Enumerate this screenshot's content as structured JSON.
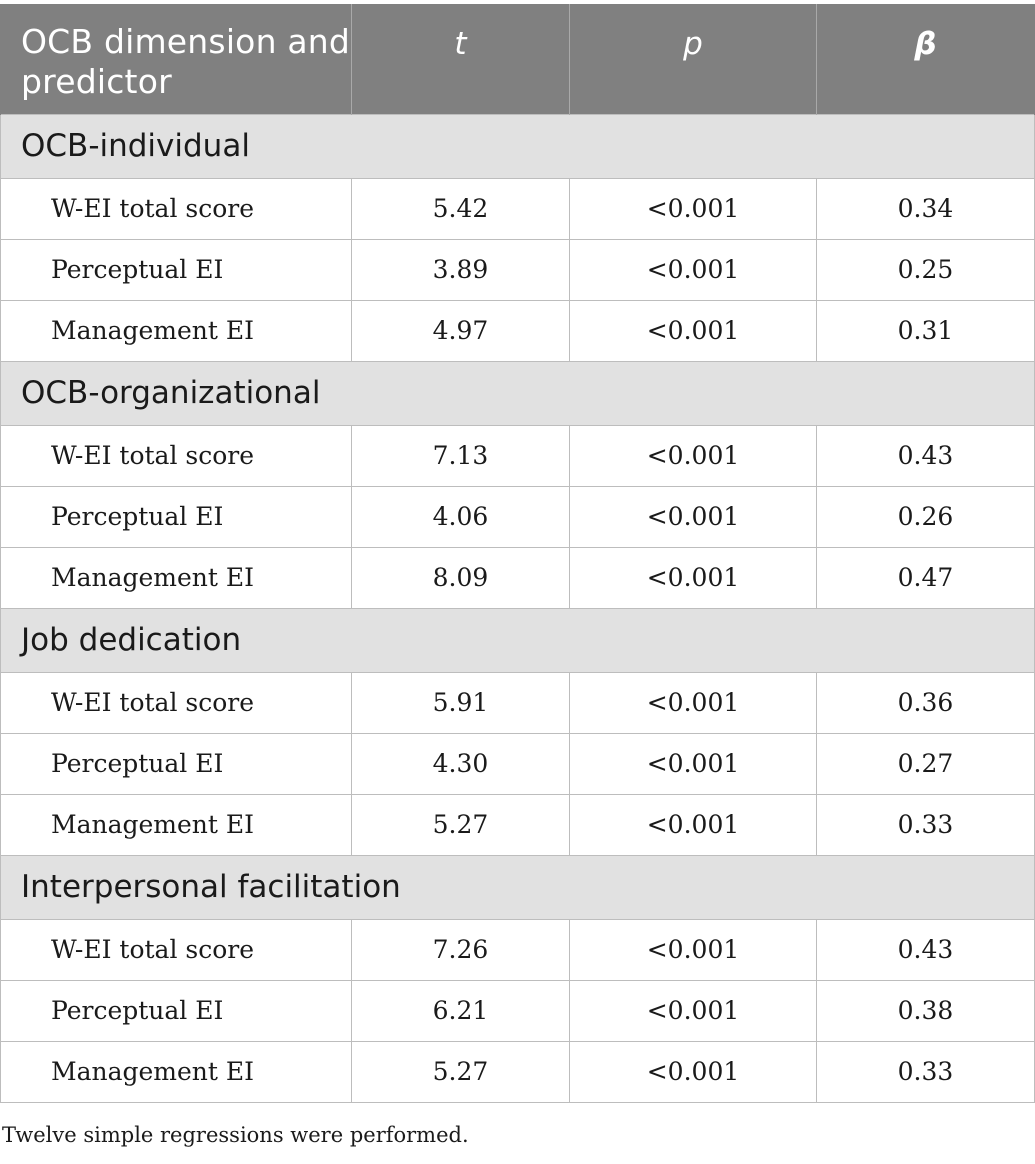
{
  "table": {
    "headers": [
      "OCB dimension and predictor",
      "t",
      "p",
      "β"
    ],
    "groups": [
      {
        "title": "OCB-individual",
        "rows": [
          {
            "predictor": "W-EI total score",
            "t": "5.42",
            "p": "<0.001",
            "beta": "0.34"
          },
          {
            "predictor": "Perceptual EI",
            "t": "3.89",
            "p": "<0.001",
            "beta": "0.25"
          },
          {
            "predictor": "Management EI",
            "t": "4.97",
            "p": "<0.001",
            "beta": "0.31"
          }
        ]
      },
      {
        "title": "OCB-organizational",
        "rows": [
          {
            "predictor": "W-EI total score",
            "t": "7.13",
            "p": "<0.001",
            "beta": "0.43"
          },
          {
            "predictor": "Perceptual EI",
            "t": "4.06",
            "p": "<0.001",
            "beta": "0.26"
          },
          {
            "predictor": "Management EI",
            "t": "8.09",
            "p": "<0.001",
            "beta": "0.47"
          }
        ]
      },
      {
        "title": "Job dedication",
        "rows": [
          {
            "predictor": "W-EI total score",
            "t": "5.91",
            "p": "<0.001",
            "beta": "0.36"
          },
          {
            "predictor": "Perceptual EI",
            "t": "4.30",
            "p": "<0.001",
            "beta": "0.27"
          },
          {
            "predictor": "Management EI",
            "t": "5.27",
            "p": "<0.001",
            "beta": "0.33"
          }
        ]
      },
      {
        "title": "Interpersonal facilitation",
        "rows": [
          {
            "predictor": "W-EI total score",
            "t": "7.26",
            "p": "<0.001",
            "beta": "0.43"
          },
          {
            "predictor": "Perceptual EI",
            "t": "6.21",
            "p": "<0.001",
            "beta": "0.38"
          },
          {
            "predictor": "Management EI",
            "t": "5.27",
            "p": "<0.001",
            "beta": "0.33"
          }
        ]
      }
    ]
  },
  "footnote": "Twelve simple regressions were performed."
}
